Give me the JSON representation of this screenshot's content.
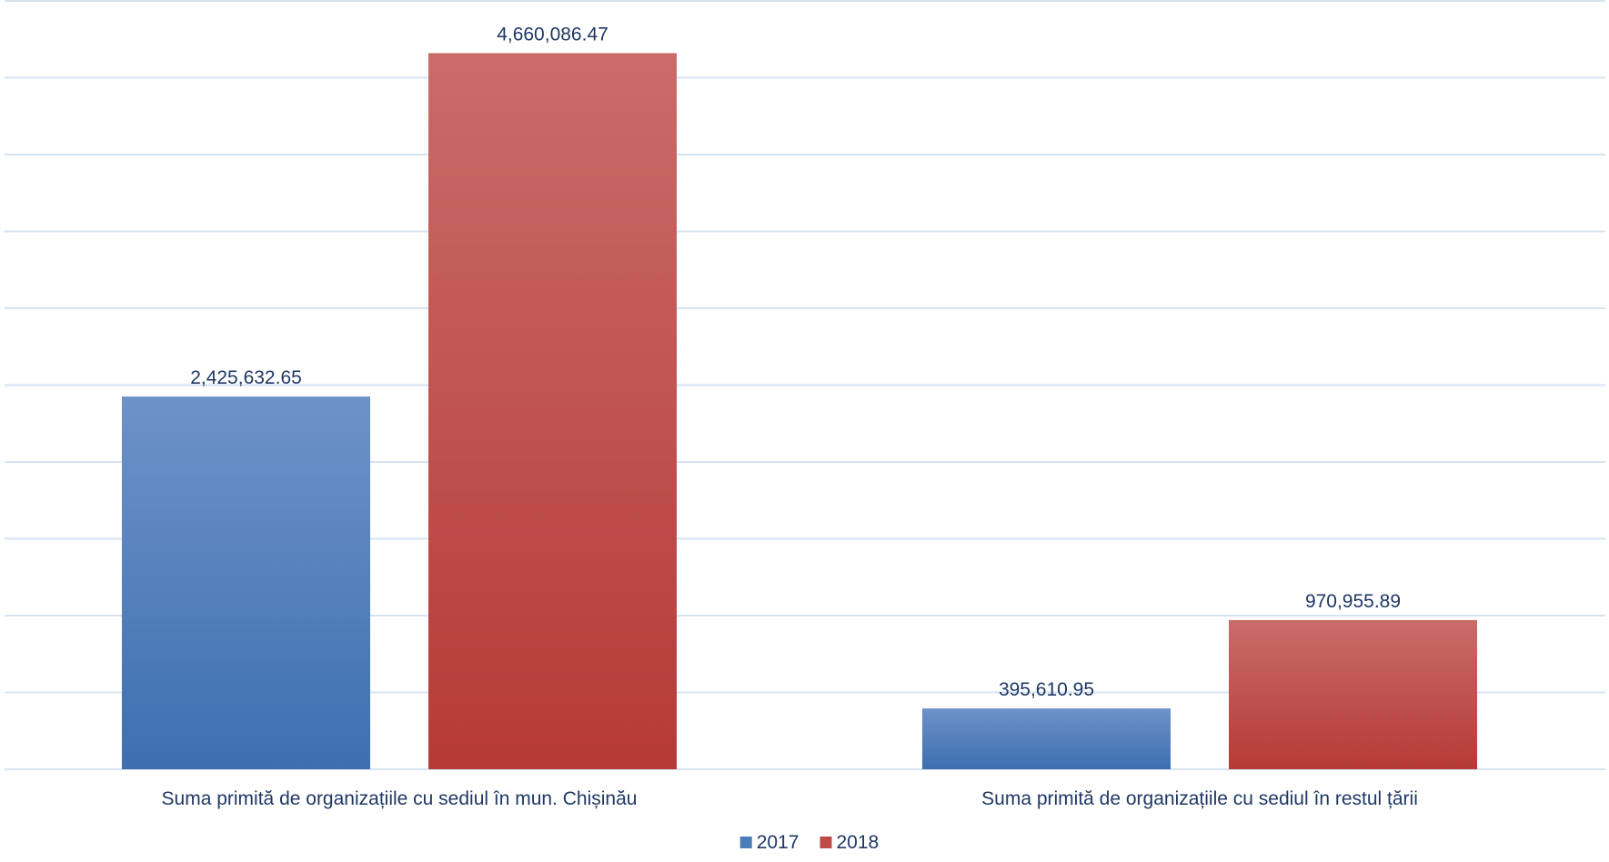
{
  "chart_data": {
    "type": "bar",
    "title": "",
    "xlabel": "",
    "ylabel": "",
    "categories": [
      "Suma primită de organizațiile cu sediul în mun. Chișinău",
      "Suma primită de organizațiile cu sediul în restul țării"
    ],
    "series": [
      {
        "name": "2017",
        "values": [
          2425632.65,
          395610.95
        ],
        "labels": [
          "2,425,632.65",
          "395,610.95"
        ],
        "color": "#4a7ebb",
        "color_top": "#6e92c8",
        "color_bottom": "#3d6fb0"
      },
      {
        "name": "2018",
        "values": [
          4660086.47,
          970955.89
        ],
        "labels": [
          "4,660,086.47",
          "970,955.89"
        ],
        "color": "#be4b48",
        "color_top": "#c96c69",
        "color_bottom": "#b63a37"
      }
    ],
    "ylim": [
      0,
      5000000
    ],
    "gridlines": 10,
    "y_axis_tick_labels_visible": false,
    "legend": {
      "position": "bottom-center",
      "entries": [
        "2017",
        "2018"
      ]
    },
    "gridline_color": "#d6e3f0"
  }
}
